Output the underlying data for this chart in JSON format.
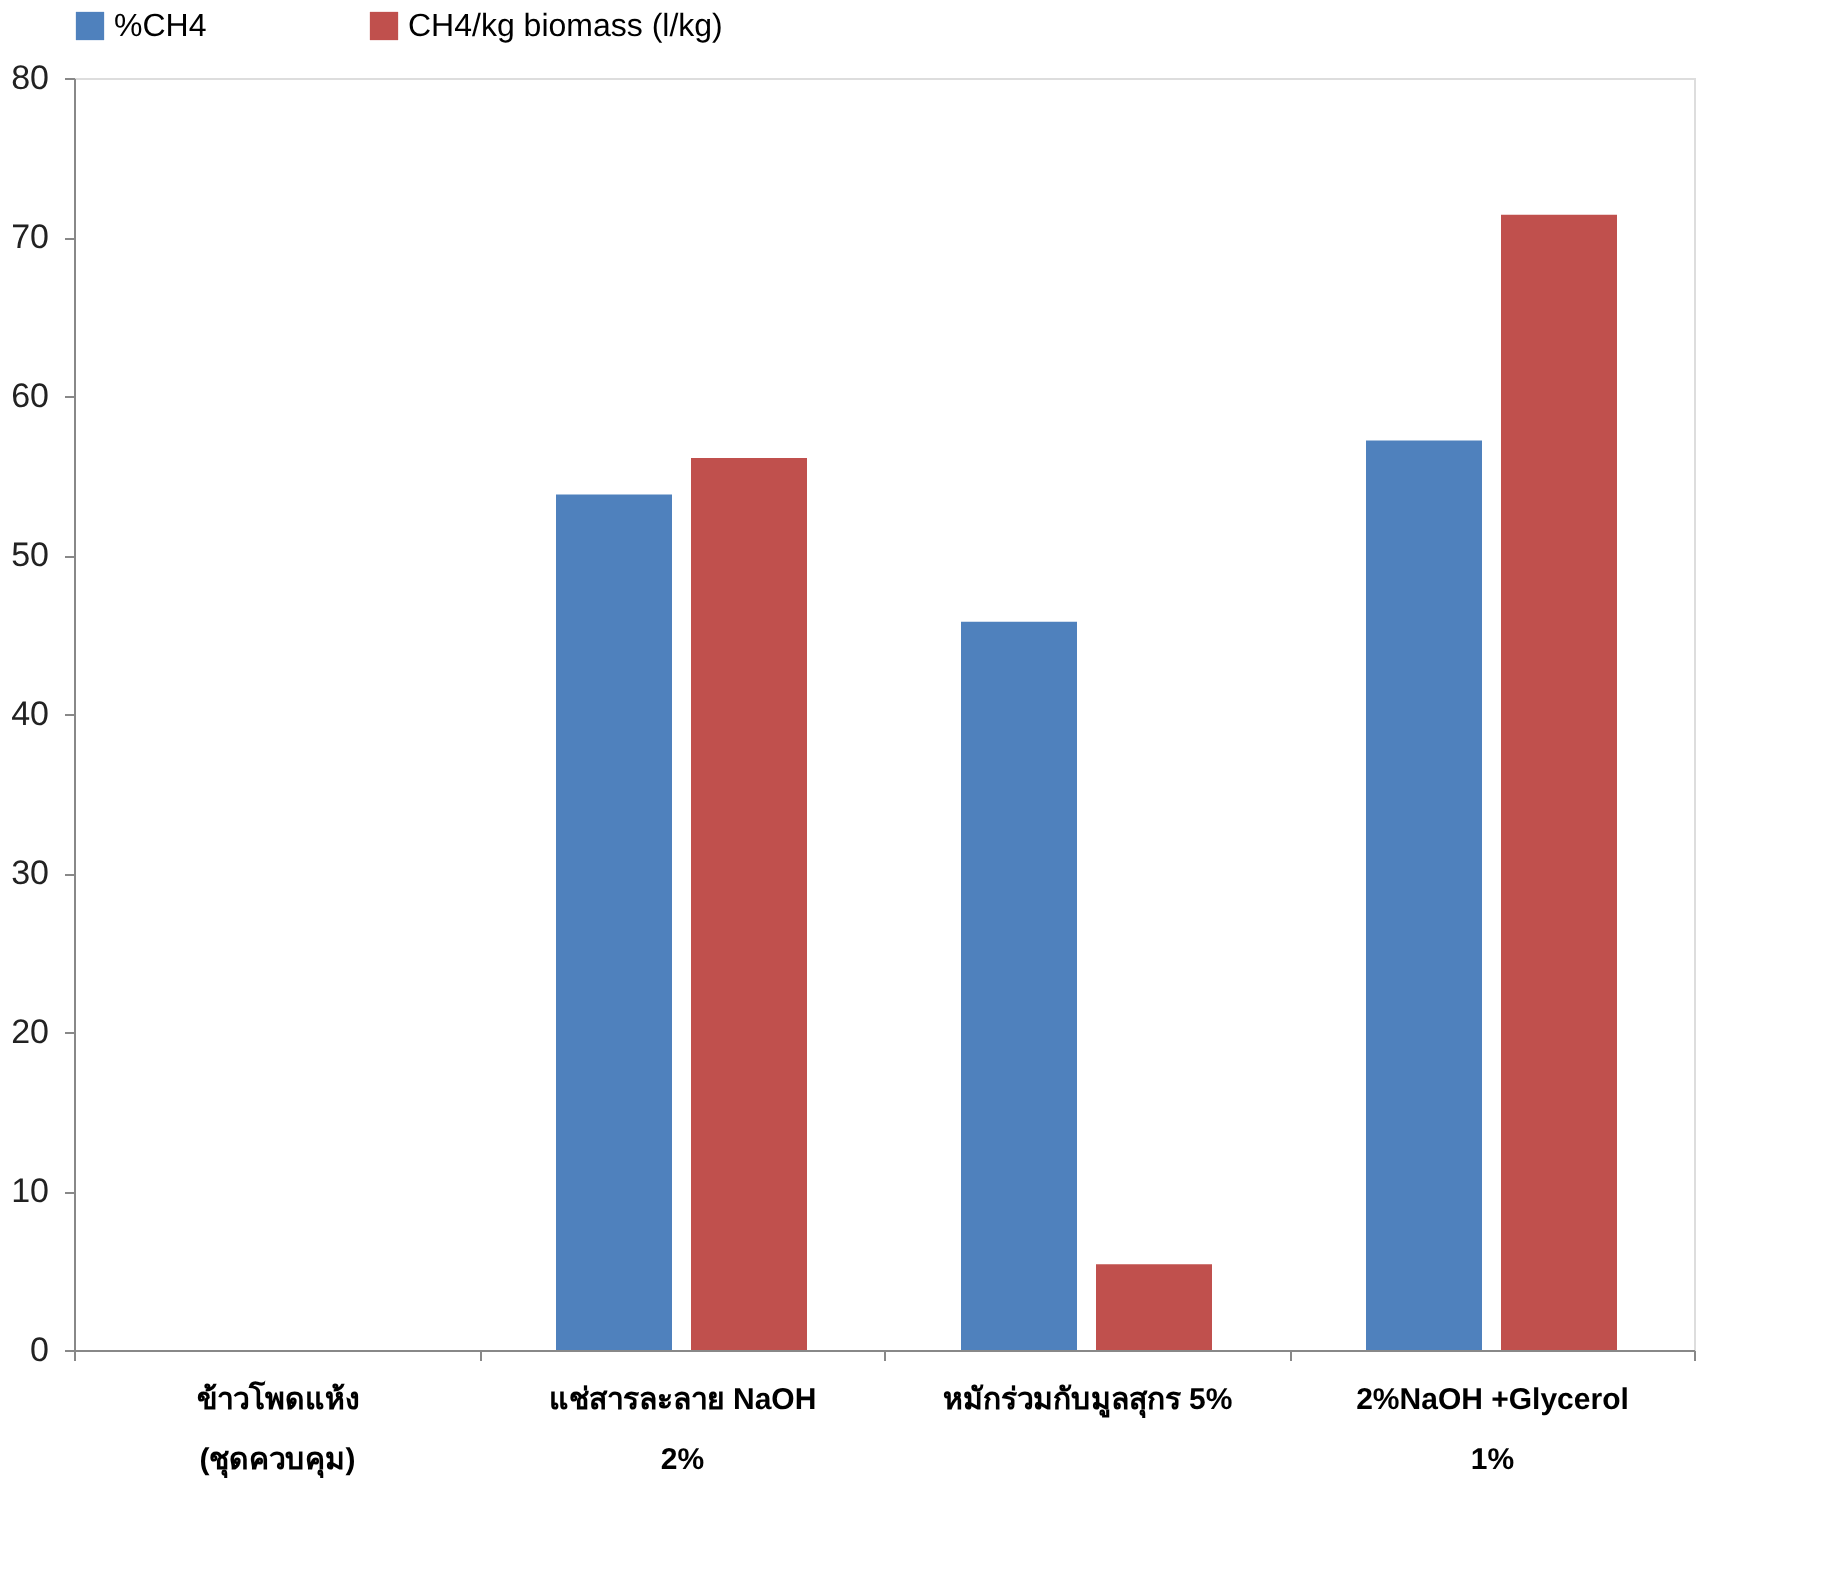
{
  "chart_data": {
    "type": "bar",
    "categories": [
      "ข้าวโพดแห้ง (ชุดควบคุม)",
      "แช่สารละลาย NaOH 2%",
      "หมักร่วมกับมูลสุกร 5%",
      "2%NaOH +Glycerol 1%"
    ],
    "series": [
      {
        "name": "%CH4",
        "color": "#4f81bd",
        "values": [
          0,
          53.8,
          45.8,
          57.2
        ]
      },
      {
        "name": "CH4/kg biomass  (l/kg)",
        "color": "#c0504d",
        "values": [
          0,
          56.1,
          5.4,
          71.4
        ]
      }
    ],
    "ylim": [
      0,
      80
    ],
    "yticks": [
      0,
      10,
      20,
      30,
      40,
      50,
      60,
      70,
      80
    ],
    "grid": false,
    "legend": "top"
  }
}
